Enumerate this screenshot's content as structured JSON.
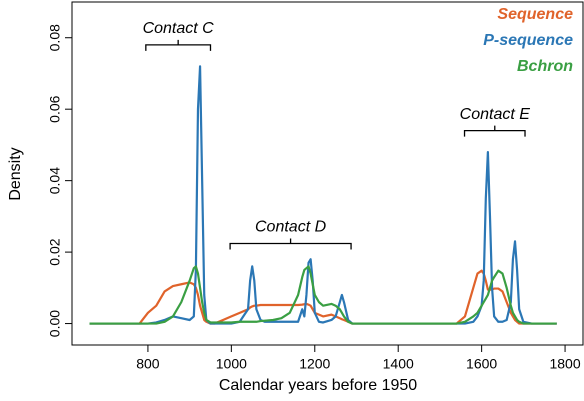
{
  "chart_data": {
    "type": "line",
    "xlabel": "Calendar years before 1950",
    "ylabel": "Density",
    "x": [
      660,
      700,
      750,
      780,
      800,
      820,
      840,
      860,
      880,
      900,
      910,
      915,
      920,
      925,
      930,
      935,
      940,
      950,
      960,
      980,
      1000,
      1020,
      1040,
      1045,
      1050,
      1055,
      1060,
      1070,
      1080,
      1100,
      1120,
      1140,
      1160,
      1170,
      1175,
      1180,
      1185,
      1190,
      1195,
      1200,
      1210,
      1220,
      1240,
      1250,
      1260,
      1265,
      1270,
      1280,
      1290,
      1300,
      1350,
      1400,
      1450,
      1500,
      1540,
      1560,
      1580,
      1590,
      1600,
      1605,
      1610,
      1615,
      1620,
      1625,
      1630,
      1640,
      1650,
      1660,
      1670,
      1675,
      1680,
      1685,
      1690,
      1700,
      1720,
      1740,
      1780
    ],
    "series": [
      {
        "name": "Sequence",
        "color": "#e0632b",
        "values": [
          0,
          0,
          0,
          0,
          0.003,
          0.005,
          0.009,
          0.0105,
          0.011,
          0.0115,
          0.011,
          0.01,
          0.008,
          0.005,
          0.003,
          0.001,
          0.0005,
          0,
          0,
          0.001,
          0.002,
          0.003,
          0.004,
          0.0045,
          0.0048,
          0.005,
          0.005,
          0.0052,
          0.0052,
          0.0052,
          0.0052,
          0.0052,
          0.0052,
          0.0053,
          0.0054,
          0.0055,
          0.0053,
          0.005,
          0.004,
          0.003,
          0.0025,
          0.002,
          0.0025,
          0.002,
          0.0015,
          0.0012,
          0.001,
          0.0005,
          0,
          0,
          0,
          0,
          0,
          0,
          0,
          0.002,
          0.01,
          0.014,
          0.0148,
          0.014,
          0.012,
          0.0095,
          0.0095,
          0.0095,
          0.0098,
          0.0098,
          0.009,
          0.006,
          0.003,
          0.002,
          0.001,
          0.0005,
          0,
          0,
          0,
          0,
          0
        ]
      },
      {
        "name": "P-sequence",
        "color": "#2b77b5",
        "values": [
          0,
          0,
          0,
          0,
          0,
          0.0003,
          0.001,
          0.002,
          0.0015,
          0.001,
          0.002,
          0.015,
          0.06,
          0.072,
          0.04,
          0.008,
          0.001,
          0,
          0,
          0,
          0,
          0.0005,
          0.004,
          0.012,
          0.016,
          0.012,
          0.004,
          0.001,
          0.0005,
          0.0005,
          0.0005,
          0.0005,
          0.0005,
          0.004,
          0.002,
          0.008,
          0.017,
          0.018,
          0.012,
          0.003,
          0.0005,
          0.0003,
          0.001,
          0.002,
          0.006,
          0.008,
          0.006,
          0.001,
          0,
          0,
          0,
          0,
          0,
          0,
          0,
          0,
          0.0005,
          0.002,
          0.005,
          0.012,
          0.035,
          0.048,
          0.03,
          0.01,
          0.002,
          0.0005,
          0.0005,
          0.001,
          0.006,
          0.018,
          0.023,
          0.015,
          0.004,
          0.0005,
          0,
          0,
          0
        ]
      },
      {
        "name": "Bchron",
        "color": "#3a9f43",
        "values": [
          0,
          0,
          0,
          0,
          0,
          0,
          0.0005,
          0.002,
          0.006,
          0.012,
          0.0155,
          0.016,
          0.014,
          0.01,
          0.006,
          0.003,
          0.001,
          0.0003,
          0.0003,
          0.0003,
          0.0003,
          0.0005,
          0.0005,
          0.0005,
          0.0005,
          0.0005,
          0.0005,
          0.0007,
          0.0008,
          0.001,
          0.0015,
          0.003,
          0.008,
          0.013,
          0.015,
          0.0155,
          0.016,
          0.014,
          0.011,
          0.008,
          0.006,
          0.005,
          0.0055,
          0.005,
          0.004,
          0.003,
          0.002,
          0.0005,
          0,
          0,
          0,
          0,
          0,
          0,
          0,
          0.0005,
          0.002,
          0.003,
          0.005,
          0.006,
          0.007,
          0.008,
          0.01,
          0.012,
          0.013,
          0.0148,
          0.014,
          0.01,
          0.005,
          0.003,
          0.002,
          0.001,
          0.0005,
          0,
          0,
          0,
          0
        ]
      }
    ],
    "xlim": [
      618,
      1843
    ],
    "ylim": [
      -0.006,
      0.09
    ],
    "xticks": [
      800,
      1000,
      1200,
      1400,
      1600,
      1800
    ],
    "yticks": [
      {
        "value": 0,
        "label": "0.00"
      },
      {
        "value": 0.02,
        "label": "0.02"
      },
      {
        "value": 0.04,
        "label": "0.04"
      },
      {
        "value": 0.06,
        "label": "0.06"
      },
      {
        "value": 0.08,
        "label": "0.08"
      }
    ],
    "legend": "top-right",
    "annotations": [
      {
        "text": "Contact C",
        "x": [
          795,
          950
        ],
        "y": 0.078
      },
      {
        "text": "Contact D",
        "x": [
          997,
          1287
        ],
        "y": 0.0224
      },
      {
        "text": "Contact E",
        "x": [
          1559,
          1704
        ],
        "y": 0.054
      }
    ]
  }
}
